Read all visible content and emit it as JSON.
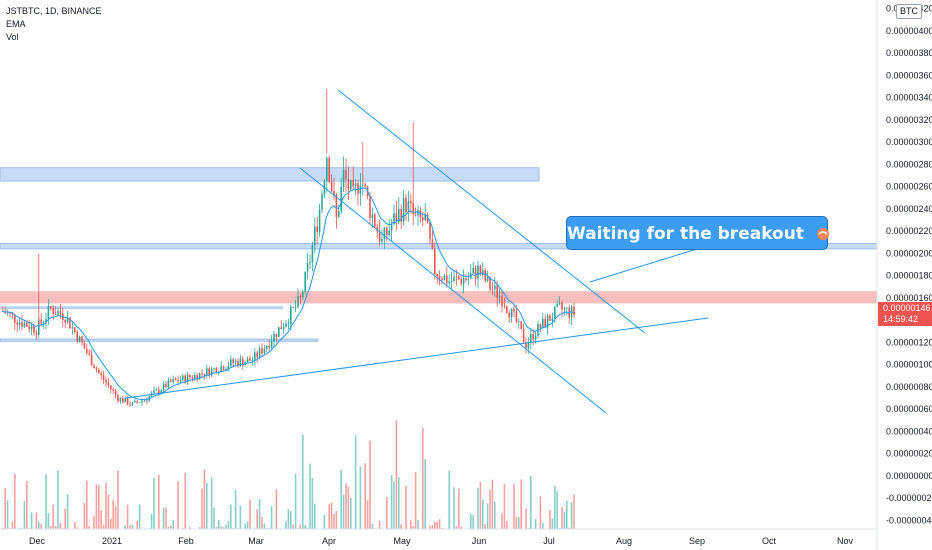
{
  "header": {
    "symbol_line": "JSTBTC, 1D, BINANCE",
    "indicator_ema": "EMA",
    "indicator_vol": "Vol"
  },
  "currency_badge": "BTC",
  "last_price": {
    "value": "0.00000146",
    "countdown": "14:59:42"
  },
  "annotation": {
    "text": "Waiting for the breakout",
    "emoji_icon": "shrimp-icon"
  },
  "colors": {
    "up": "#26a69a",
    "down": "#ef5350",
    "ema": "#2196f3",
    "zone_blue": "#bbd3f3",
    "zone_red": "#f7a8a8",
    "trendline": "#2196f3"
  },
  "chart_data": {
    "type": "candlestick",
    "x_ticks": [
      "Dec",
      "2021",
      "Feb",
      "Mar",
      "Apr",
      "May",
      "Jun",
      "Jul",
      "Aug",
      "Sep",
      "Oct",
      "Nov"
    ],
    "y_ticks": [
      "0.00000420",
      "0.00000400",
      "0.00000380",
      "0.00000360",
      "0.00000340",
      "0.00000320",
      "0.00000300",
      "0.00000280",
      "0.00000260",
      "0.00000240",
      "0.00000220",
      "0.00000200",
      "0.00000180",
      "0.00000160",
      "0.00000140",
      "0.00000120",
      "0.00000100",
      "0.00000080",
      "0.00000060",
      "0.00000040",
      "0.00000020",
      "0.00000000",
      "-0.00000020",
      "-0.00000040"
    ],
    "ylim": [
      -4.6e-07,
      4.26e-06
    ],
    "price_path": [
      [
        0,
        1.48e-06
      ],
      [
        8,
        1.38e-06
      ],
      [
        14,
        1.32e-06
      ],
      [
        20,
        1.5e-06
      ],
      [
        26,
        1.44e-06
      ],
      [
        32,
        1.22e-06
      ],
      [
        40,
        9.2e-07
      ],
      [
        48,
        7e-07
      ],
      [
        54,
        6.4e-07
      ],
      [
        60,
        7e-07
      ],
      [
        70,
        8.4e-07
      ],
      [
        80,
        9e-07
      ],
      [
        88,
        9.6e-07
      ],
      [
        96,
        1.02e-06
      ],
      [
        104,
        1.04e-06
      ],
      [
        110,
        1.18e-06
      ],
      [
        118,
        1.4e-06
      ],
      [
        124,
        1.58e-06
      ],
      [
        128,
        1.95e-06
      ],
      [
        132,
        2.4e-06
      ],
      [
        135,
        2.9e-06
      ],
      [
        139,
        2.3e-06
      ],
      [
        142,
        2.7e-06
      ],
      [
        146,
        2.5e-06
      ],
      [
        149,
        2.7e-06
      ],
      [
        153,
        2.4e-06
      ],
      [
        158,
        2.1e-06
      ],
      [
        163,
        2.3e-06
      ],
      [
        168,
        2.45e-06
      ],
      [
        172,
        2.3e-06
      ],
      [
        176,
        2.3e-06
      ],
      [
        180,
        1.85e-06
      ],
      [
        186,
        1.75e-06
      ],
      [
        194,
        1.78e-06
      ],
      [
        198,
        1.85e-06
      ],
      [
        203,
        1.7e-06
      ],
      [
        208,
        1.6e-06
      ],
      [
        214,
        1.38e-06
      ],
      [
        218,
        1.18e-06
      ],
      [
        222,
        1.3e-06
      ],
      [
        227,
        1.4e-06
      ],
      [
        232,
        1.5e-06
      ],
      [
        238,
        1.46e-06
      ]
    ],
    "volume_ylim": [
      0,
      1
    ],
    "zones": [
      {
        "name": "resistance-zone-upper",
        "low": 2.65e-06,
        "high": 2.77e-06
      },
      {
        "name": "resistance-zone-middle",
        "low": 2.04e-06,
        "high": 2.09e-06
      },
      {
        "name": "breakout-zone",
        "low": 1.55e-06,
        "high": 1.66e-06
      },
      {
        "name": "support-line-left",
        "low": 1.21e-06,
        "high": 1.23e-06
      }
    ]
  }
}
